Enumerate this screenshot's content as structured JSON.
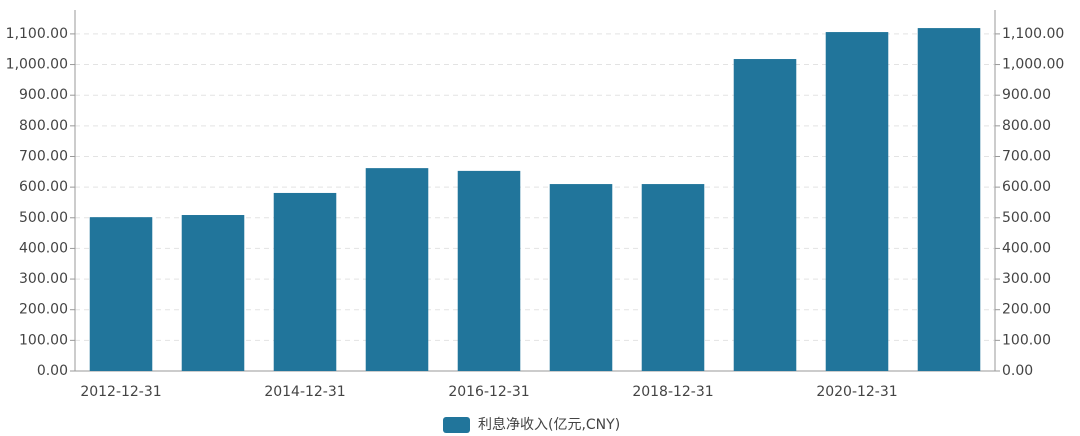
{
  "chart_data": {
    "type": "bar",
    "categories": [
      "2012-12-31",
      null,
      "2014-12-31",
      null,
      "2016-12-31",
      null,
      "2018-12-31",
      null,
      "2020-12-31",
      null
    ],
    "series": [
      {
        "name": "利息净收入(亿元,CNY)",
        "color": "#21759b",
        "values": [
          502,
          509,
          581,
          662,
          653,
          610,
          610,
          1018,
          1106,
          1119
        ]
      }
    ],
    "ylim": [
      0,
      1178
    ],
    "yticks": [
      {
        "value": 0,
        "label": "0.00"
      },
      {
        "value": 100,
        "label": "100.00"
      },
      {
        "value": 200,
        "label": "200.00"
      },
      {
        "value": 300,
        "label": "300.00"
      },
      {
        "value": 400,
        "label": "400.00"
      },
      {
        "value": 500,
        "label": "500.00"
      },
      {
        "value": 600,
        "label": "600.00"
      },
      {
        "value": 700,
        "label": "700.00"
      },
      {
        "value": 800,
        "label": "800.00"
      },
      {
        "value": 900,
        "label": "900.00"
      },
      {
        "value": 1000,
        "label": "1,000.00"
      },
      {
        "value": 1100,
        "label": "1,100.00"
      }
    ],
    "y2lim": [
      0,
      1178
    ],
    "y2ticks": [
      {
        "value": 0,
        "label": "0.00"
      },
      {
        "value": 100,
        "label": "100.00"
      },
      {
        "value": 200,
        "label": "200.00"
      },
      {
        "value": 300,
        "label": "300.00"
      },
      {
        "value": 400,
        "label": "400.00"
      },
      {
        "value": 500,
        "label": "500.00"
      },
      {
        "value": 600,
        "label": "600.00"
      },
      {
        "value": 700,
        "label": "700.00"
      },
      {
        "value": 800,
        "label": "800.00"
      },
      {
        "value": 900,
        "label": "900.00"
      },
      {
        "value": 1000,
        "label": "1,000.00"
      },
      {
        "value": 1100,
        "label": "1,100.00"
      }
    ],
    "grid": true,
    "legend": "bottom"
  }
}
